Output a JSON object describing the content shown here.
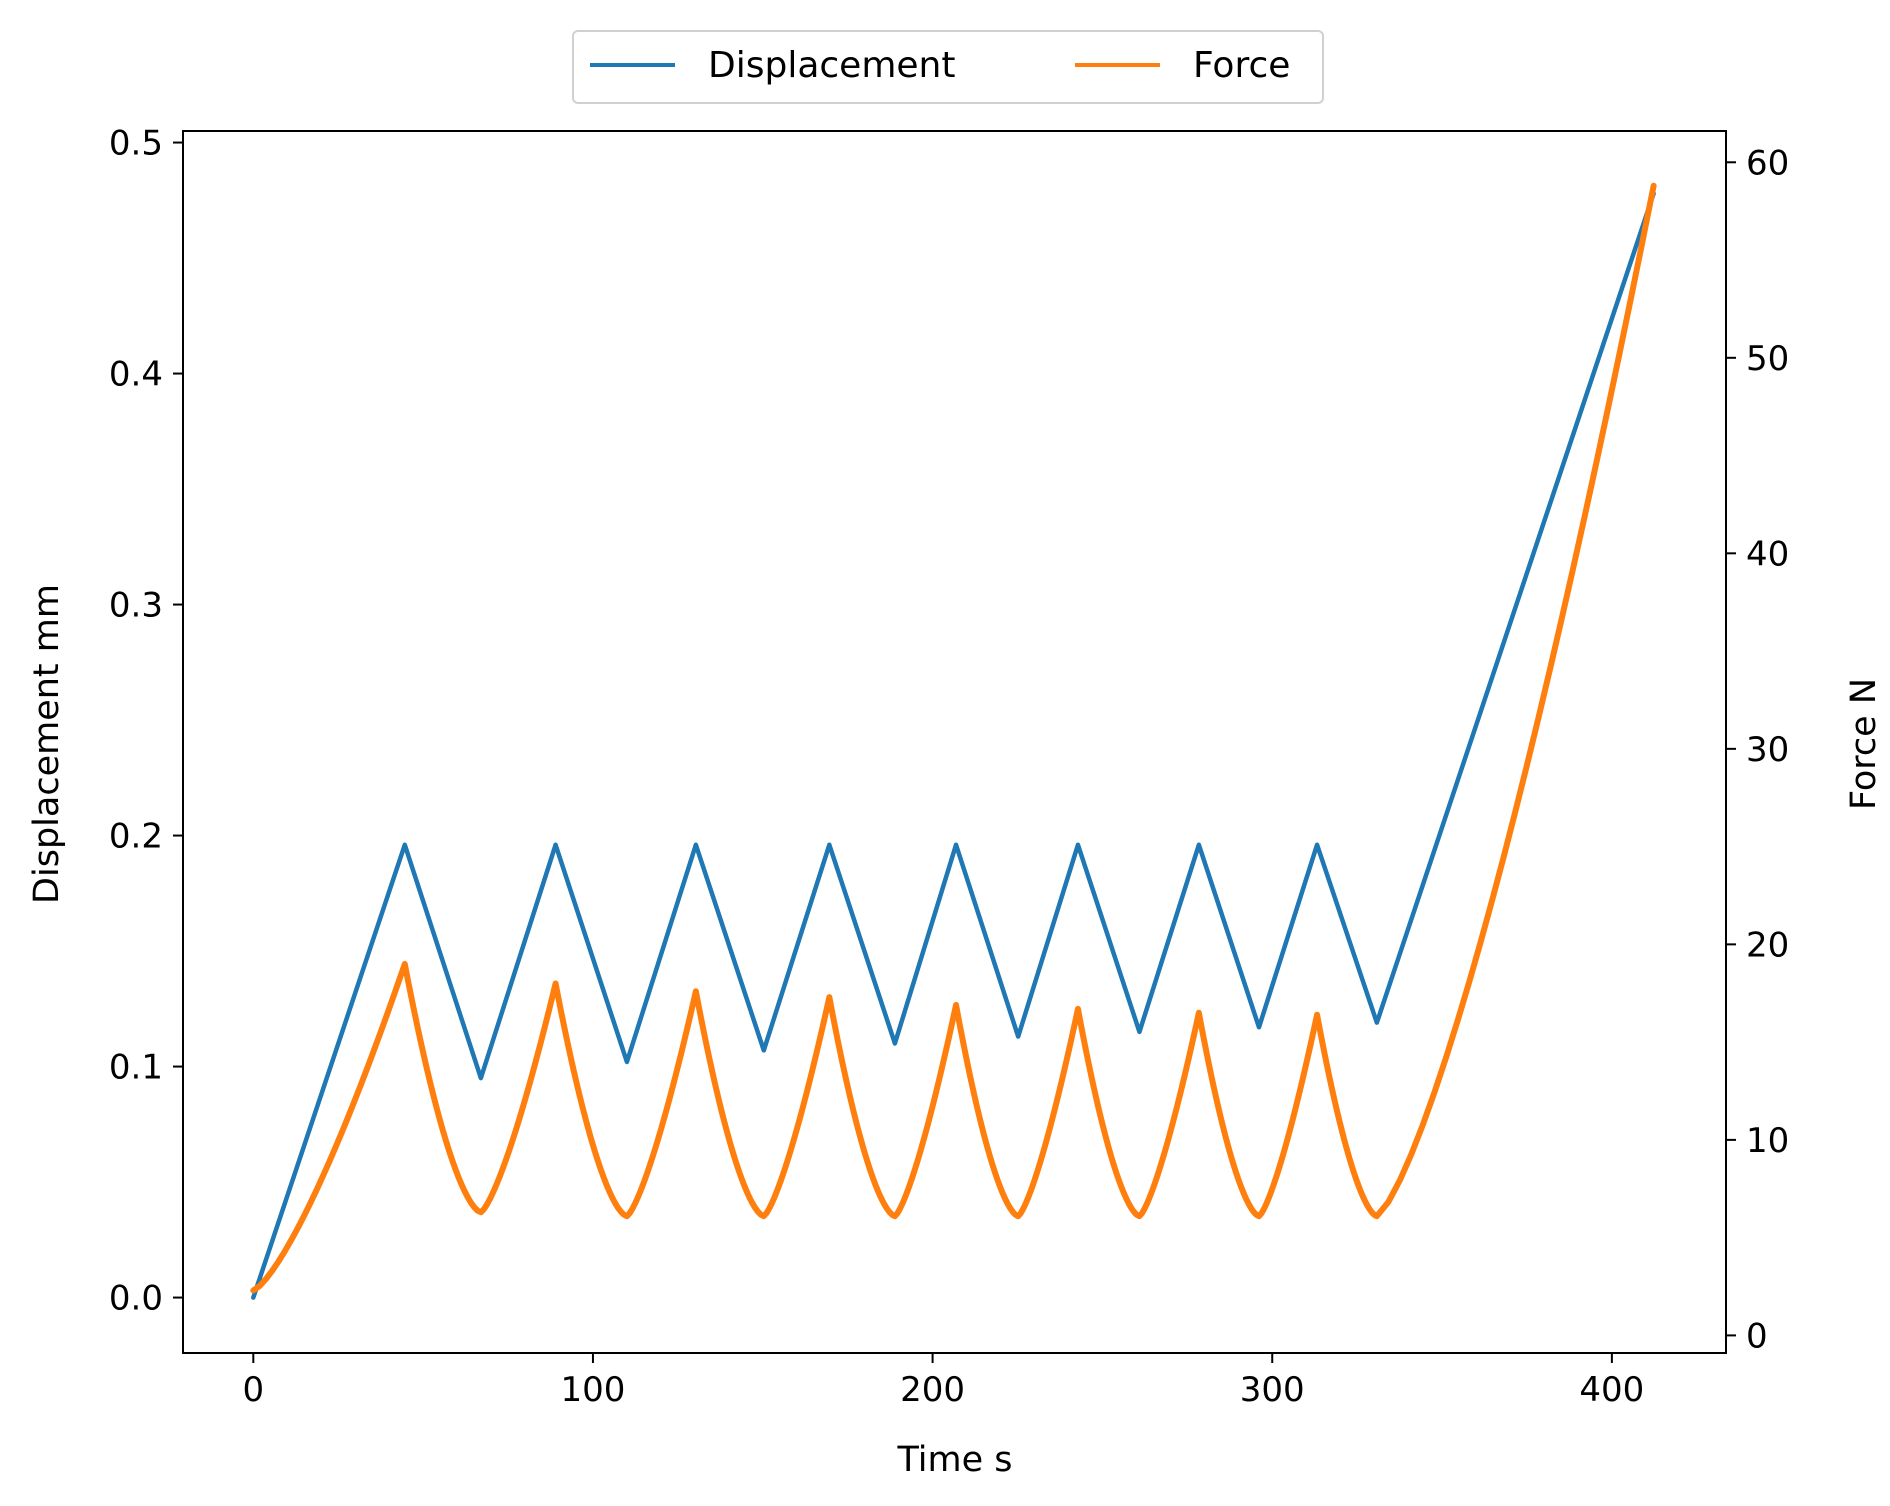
{
  "chart_data": {
    "type": "line",
    "xlabel": "Time s",
    "ylabel": "Displacement mm",
    "y2label": "Force N",
    "xlim": [
      -20.7,
      433.6
    ],
    "ylim": [
      -0.024,
      0.505
    ],
    "y2lim": [
      -0.9,
      61.6
    ],
    "xticks": [
      0,
      100,
      200,
      300,
      400
    ],
    "yticks": [
      0.0,
      0.1,
      0.2,
      0.3,
      0.4,
      0.5
    ],
    "y2ticks": [
      0,
      10,
      20,
      30,
      40,
      50,
      60
    ],
    "ytick_labels": [
      "0.0",
      "0.1",
      "0.2",
      "0.3",
      "0.4",
      "0.5"
    ],
    "grid": false,
    "legend": {
      "position": "top-center, outside",
      "columns": 2
    },
    "series": [
      {
        "name": "Displacement",
        "axis": "left",
        "color": "#1f77b4",
        "x": [
          0,
          44.6,
          67,
          89,
          110,
          130.3,
          150.3,
          169.6,
          188.9,
          206.9,
          225.2,
          242.8,
          260.9,
          278.4,
          296.1,
          313.2,
          330.8,
          412.3
        ],
        "y": [
          0.0,
          0.196,
          0.095,
          0.196,
          0.102,
          0.196,
          0.107,
          0.196,
          0.11,
          0.196,
          0.113,
          0.196,
          0.115,
          0.196,
          0.117,
          0.196,
          0.119,
          0.478
        ]
      },
      {
        "name": "Force",
        "axis": "right",
        "color": "#ff7f0e",
        "x": [
          0,
          44.6,
          67,
          89,
          110,
          130.3,
          150.3,
          169.6,
          188.9,
          206.9,
          225.2,
          242.8,
          260.9,
          278.4,
          296.1,
          313.2,
          330.8,
          412.3
        ],
        "y": [
          2.3,
          19.0,
          6.3,
          18.0,
          6.1,
          17.6,
          6.1,
          17.3,
          6.1,
          16.9,
          6.1,
          16.7,
          6.1,
          16.5,
          6.1,
          16.4,
          6.1,
          58.8
        ]
      }
    ]
  }
}
